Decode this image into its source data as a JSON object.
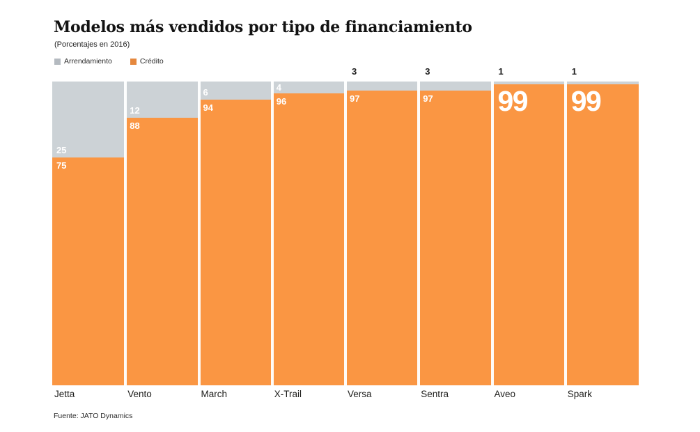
{
  "header": {
    "title": "Modelos más vendidos por tipo de financiamiento",
    "subtitle": "(Porcentajes en 2016)"
  },
  "legend": {
    "items": [
      {
        "label": "Arrendamiento",
        "color": "#b4bac0"
      },
      {
        "label": "Crédito",
        "color": "#e5883e"
      }
    ]
  },
  "chart_data": {
    "type": "bar",
    "stacked": true,
    "orientation": "vertical",
    "unit": "percent",
    "ylim": [
      0,
      100
    ],
    "grid": false,
    "legend_position": "top-left",
    "title": "Modelos más vendidos por tipo de financiamiento",
    "subtitle": "(Porcentajes en 2016)",
    "categories": [
      "Jetta",
      "Vento",
      "March",
      "X-Trail",
      "Versa",
      "Sentra",
      "Aveo",
      "Spark"
    ],
    "series": [
      {
        "name": "Arrendamiento",
        "color": "#b4bac0",
        "values": [
          25,
          12,
          6,
          4,
          3,
          3,
          1,
          1
        ]
      },
      {
        "name": "Crédito",
        "color": "#e5883e",
        "values": [
          75,
          88,
          94,
          96,
          97,
          97,
          99,
          99
        ]
      }
    ]
  },
  "footer": {
    "source": "Fuente: JATO Dynamics"
  }
}
